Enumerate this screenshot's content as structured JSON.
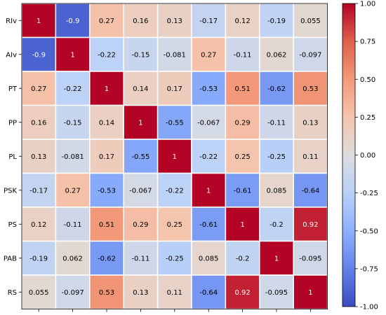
{
  "chart_data": {
    "type": "heatmap",
    "labels": [
      "RIv",
      "AIv",
      "PT",
      "PP",
      "PL",
      "PSK",
      "PS",
      "PAB",
      "RS"
    ],
    "matrix": [
      [
        "1",
        "-0.9",
        "0.27",
        "0.16",
        "0.13",
        "-0.17",
        "0.12",
        "-0.19",
        "0.055"
      ],
      [
        "-0.9",
        "1",
        "-0.22",
        "-0.15",
        "-0.081",
        "0.27",
        "-0.11",
        "0.062",
        "-0.097"
      ],
      [
        "0.27",
        "-0.22",
        "1",
        "0.14",
        "0.17",
        "-0.53",
        "0.51",
        "-0.62",
        "0.53"
      ],
      [
        "0.16",
        "-0.15",
        "0.14",
        "1",
        "-0.55",
        "-0.067",
        "0.29",
        "-0.11",
        "0.13"
      ],
      [
        "0.13",
        "-0.081",
        "0.17",
        "-0.55",
        "1",
        "-0.22",
        "0.25",
        "-0.25",
        "0.11"
      ],
      [
        "-0.17",
        "0.27",
        "-0.53",
        "-0.067",
        "-0.22",
        "1",
        "-0.61",
        "0.085",
        "-0.64"
      ],
      [
        "0.12",
        "-0.11",
        "0.51",
        "0.29",
        "0.25",
        "-0.61",
        "1",
        "-0.2",
        "0.92"
      ],
      [
        "-0.19",
        "0.062",
        "-0.62",
        "-0.11",
        "-0.25",
        "0.085",
        "-0.2",
        "1",
        "-0.095"
      ],
      [
        "0.055",
        "-0.097",
        "0.53",
        "0.13",
        "0.11",
        "-0.64",
        "0.92",
        "-0.095",
        "1"
      ]
    ],
    "colorbar": {
      "range": [
        -1.0,
        1.0
      ],
      "ticks": [
        "1.00",
        "0.75",
        "0.50",
        "0.25",
        "0.00",
        "-0.25",
        "-0.50",
        "-0.75",
        "-1.00"
      ]
    },
    "colormap": "coolwarm",
    "xticklabels_shown": false
  }
}
